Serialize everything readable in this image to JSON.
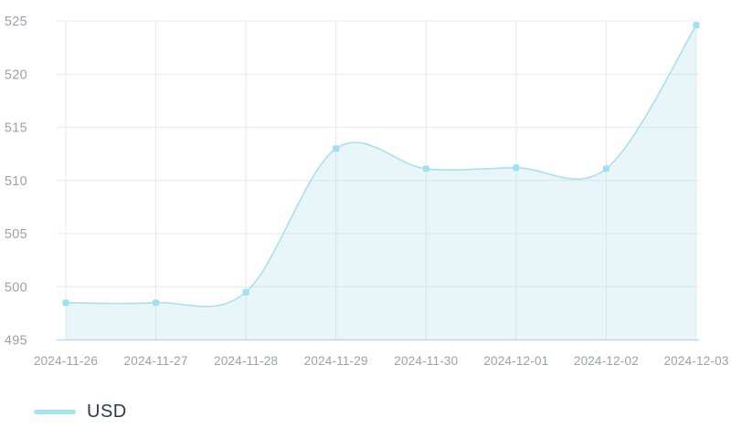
{
  "chart_data": {
    "type": "area",
    "title": "",
    "xlabel": "",
    "ylabel": "",
    "categories": [
      "2024-11-26",
      "2024-11-27",
      "2024-11-28",
      "2024-11-29",
      "2024-11-30",
      "2024-12-01",
      "2024-12-02",
      "2024-12-03"
    ],
    "series": [
      {
        "name": "USD",
        "values": [
          498.5,
          498.5,
          499.5,
          513.0,
          511.1,
          511.2,
          511.1,
          524.6
        ]
      }
    ],
    "ylim": [
      495,
      525
    ],
    "yticks": [
      495,
      500,
      505,
      510,
      515,
      520,
      525
    ],
    "grid": true,
    "line_style": "smooth",
    "marker_shape": "rounded-square",
    "legend_position": "bottom-left",
    "colors": {
      "line": "#abdfee",
      "fill": "rgba(171, 223, 238, 0.27)",
      "marker": "#9fe0f1",
      "grid": "#e7e8ea",
      "axis_line": "#c9ced4",
      "tick_text": "#9aa2ac",
      "legend_text": "#2b3950",
      "legend_swatch": "#a9e2f1"
    }
  },
  "legend": {
    "items": [
      {
        "label": "USD"
      }
    ]
  }
}
